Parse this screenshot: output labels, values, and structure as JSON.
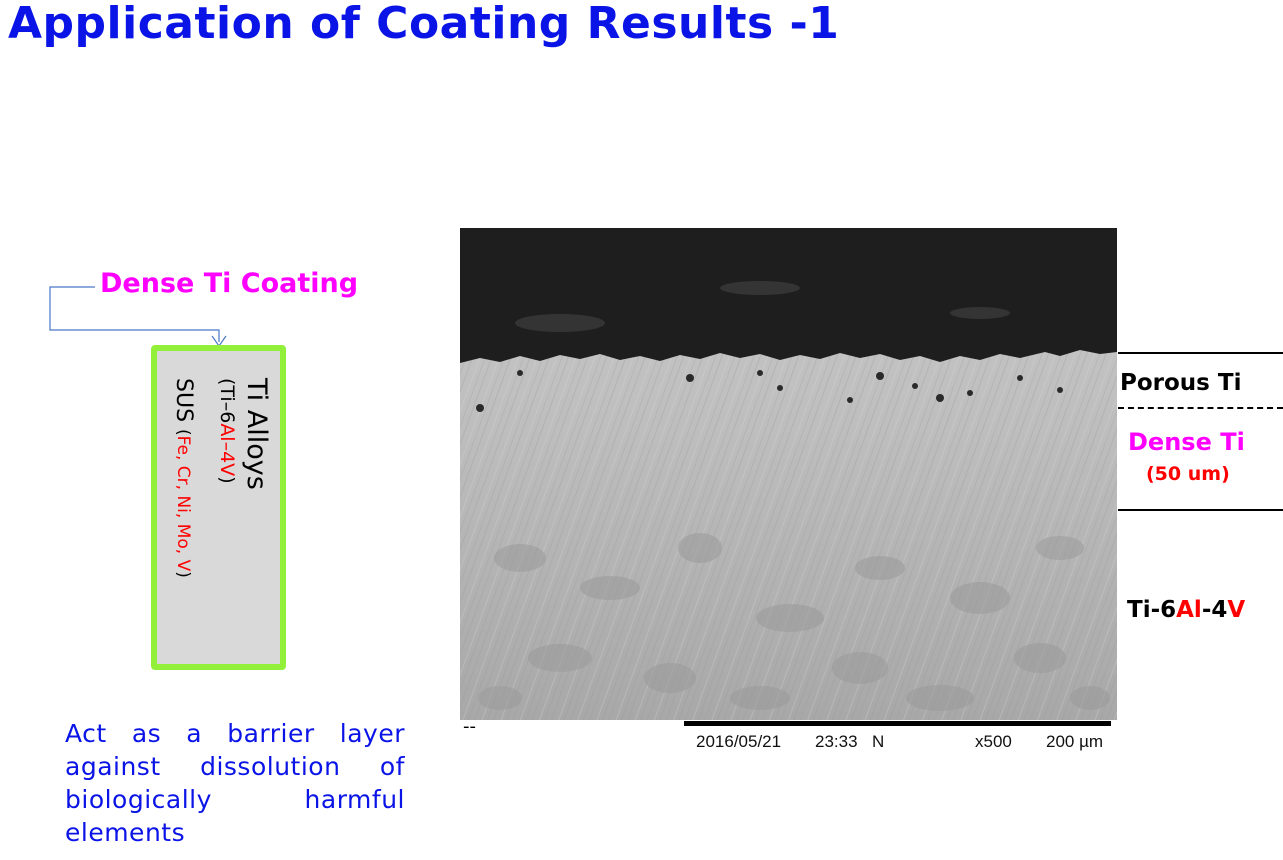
{
  "title": "Application of Coating Results -1",
  "coating_label": "Dense Ti Coating",
  "sample": {
    "line1": "Ti Alloys",
    "line2_open": "(Ti–6",
    "line2_al": "Al–4V",
    "line2_close": ")",
    "line3_main": "SUS ",
    "line3_open": "(",
    "line3_elements": "Fe, Cr, Ni, Mo, V",
    "line3_close": ")"
  },
  "description": "Act as a barrier layer against dissolution of biologically harmful elements",
  "sem": {
    "scale_dash": "--",
    "date": "2016/05/21",
    "time": "23:33",
    "mode": "N",
    "magnification": "x500",
    "scale": "200 µm"
  },
  "layers": {
    "porous": "Porous Ti",
    "dense": "Dense Ti",
    "dense_thickness": "(50 um)",
    "substrate_prefix": "Ti-6",
    "substrate_al": "Al",
    "substrate_mid": "-4",
    "substrate_v": "V"
  },
  "colors": {
    "title_blue": "#0a14e6",
    "magenta": "#ff00ff",
    "red": "#ff0000",
    "box_green": "#92f03a",
    "arrow_blue": "#4a78c8"
  }
}
